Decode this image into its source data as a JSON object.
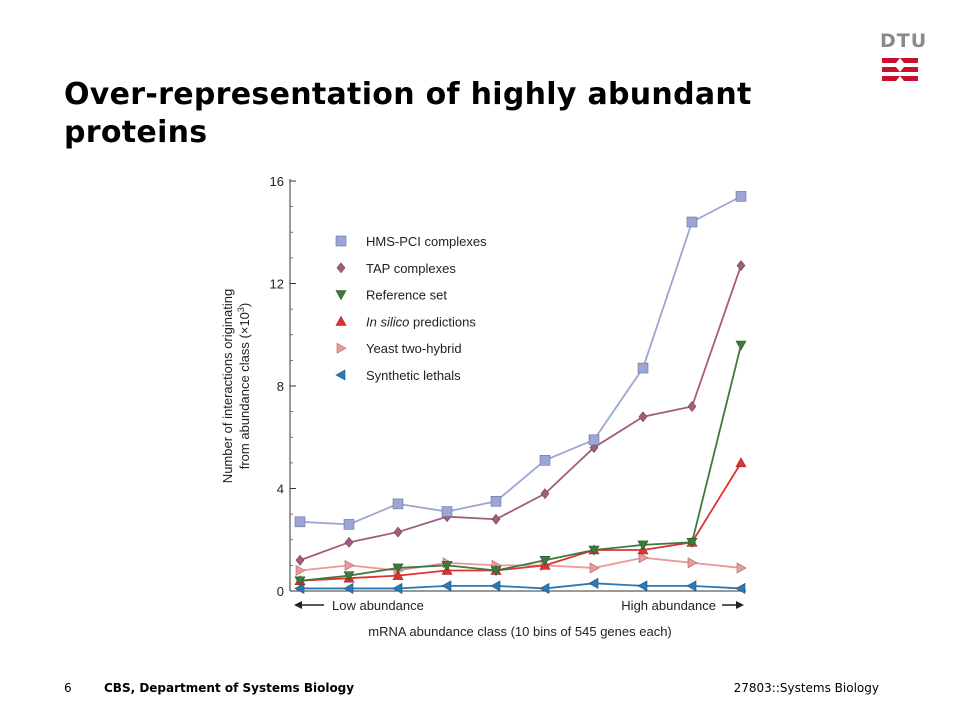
{
  "slide": {
    "title": "Over-representation of highly abundant proteins",
    "logo_text": "DTU",
    "footer": {
      "page_number": "6",
      "left": "CBS, Department of Systems Biology",
      "right": "27803::Systems Biology"
    }
  },
  "colors": {
    "logo_red": "#c8102e",
    "logo_gray": "#8a8a8a"
  },
  "chart_data": {
    "type": "line",
    "x": [
      1,
      2,
      3,
      4,
      5,
      6,
      7,
      8,
      9,
      10
    ],
    "xlim": [
      1,
      10
    ],
    "ylim": [
      0,
      16
    ],
    "yticks": [
      0,
      4,
      8,
      12,
      16
    ],
    "ylabel_line1": "Number of interactions originating",
    "ylabel_line2": "from abundance class (×10",
    "ylabel_sup": "3",
    "ylabel_end": ")",
    "xlabel": "mRNA abundance class (10 bins of 545 genes each)",
    "x_left_annotation": "Low abundance",
    "x_right_annotation": "High abundance",
    "legend_position": "upper-left",
    "series": [
      {
        "name": "HMS-PCI complexes",
        "color": "#9ba6d6",
        "marker": "square",
        "values": [
          2.7,
          2.6,
          3.4,
          3.1,
          3.5,
          5.1,
          5.9,
          8.7,
          14.4,
          15.4
        ]
      },
      {
        "name": "TAP complexes",
        "color": "#a25c7c",
        "marker": "diamond",
        "values": [
          1.2,
          1.9,
          2.3,
          2.9,
          2.8,
          3.8,
          5.6,
          6.8,
          7.2,
          12.7
        ]
      },
      {
        "name": "Reference set",
        "color": "#3d7a3d",
        "marker": "triangle-down",
        "values": [
          0.4,
          0.6,
          0.9,
          1.0,
          0.8,
          1.2,
          1.6,
          1.8,
          1.9,
          9.6
        ]
      },
      {
        "name_prefix": "In silico",
        "name_suffix": " predictions",
        "color": "#dd3333",
        "marker": "triangle-up",
        "values": [
          0.4,
          0.5,
          0.6,
          0.8,
          0.8,
          1.0,
          1.6,
          1.6,
          1.9,
          5.0
        ]
      },
      {
        "name": "Yeast two-hybrid",
        "color": "#ea9a9a",
        "marker": "triangle-right",
        "values": [
          0.8,
          1.0,
          0.8,
          1.1,
          1.0,
          1.0,
          0.9,
          1.3,
          1.1,
          0.9
        ]
      },
      {
        "name": "Synthetic lethals",
        "color": "#2a7ab8",
        "marker": "triangle-left",
        "values": [
          0.1,
          0.1,
          0.1,
          0.2,
          0.2,
          0.1,
          0.3,
          0.2,
          0.2,
          0.1
        ]
      }
    ]
  }
}
